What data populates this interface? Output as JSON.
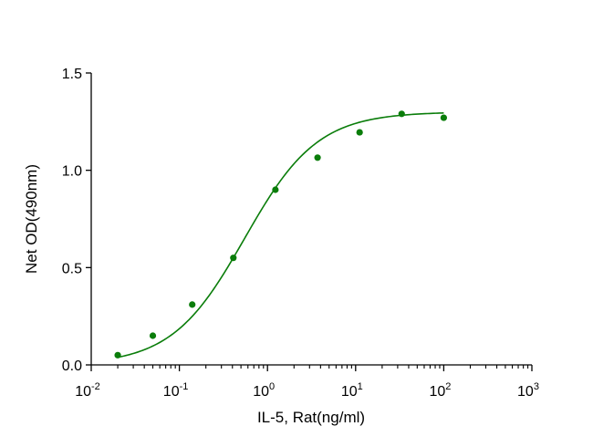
{
  "chart_data": {
    "type": "scatter",
    "title": "",
    "xlabel": "IL-5, Rat(ng/ml)",
    "ylabel": "Net OD(490nm)",
    "xscale": "log",
    "xlim": [
      0.01,
      1000
    ],
    "ylim": [
      0.0,
      1.5
    ],
    "x_tick_base": "10",
    "x_tick_exponents": [
      "-2",
      "-1",
      "0",
      "1",
      "2",
      "3"
    ],
    "y_ticks": [
      "0.0",
      "0.5",
      "1.0",
      "1.5"
    ],
    "grid": false,
    "legend": "none",
    "series": [
      {
        "points": [
          {
            "x": 0.02,
            "y": 0.05
          },
          {
            "x": 0.05,
            "y": 0.15
          },
          {
            "x": 0.14,
            "y": 0.31
          },
          {
            "x": 0.41,
            "y": 0.55
          },
          {
            "x": 1.23,
            "y": 0.9
          },
          {
            "x": 3.7,
            "y": 1.065
          },
          {
            "x": 11.1,
            "y": 1.195
          },
          {
            "x": 33.3,
            "y": 1.29
          },
          {
            "x": 100,
            "y": 1.27
          }
        ],
        "fit": {
          "model": "4PL",
          "bottom": 0.0,
          "top": 1.3,
          "ec50": 0.55,
          "hill": 1.05,
          "x_range": [
            0.02,
            100
          ]
        }
      }
    ],
    "color": "#0a7d0a"
  }
}
